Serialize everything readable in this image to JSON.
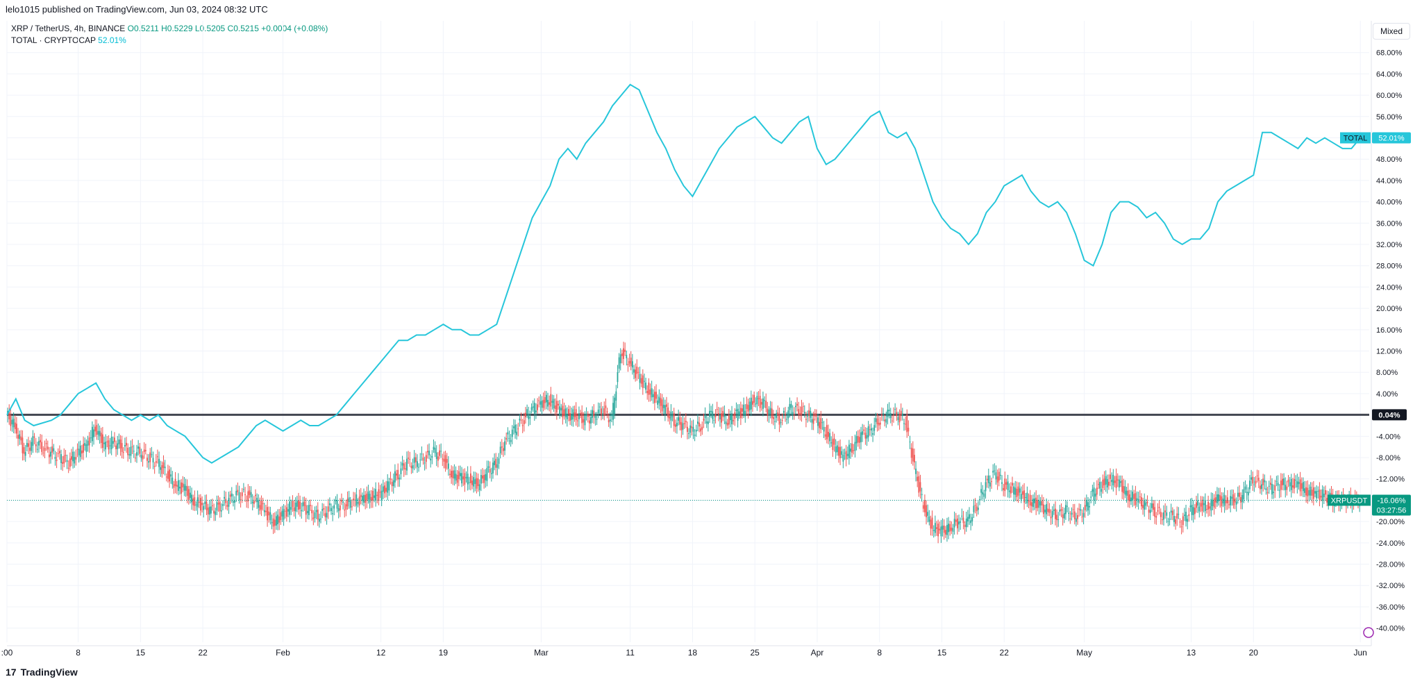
{
  "header": {
    "published": "lelo1015 published on TradingView.com, Jun 03, 2024 08:32 UTC"
  },
  "legend": {
    "symbol": "XRP / TetherUS, 4h, BINANCE",
    "ohlc": "O0.5211  H0.5229  L0.5205  C0.5215  +0.0004 (+0.08%)",
    "compare_symbol": "TOTAL · CRYPTOCAP",
    "compare_value": "52.01%"
  },
  "scale_button": "Mixed",
  "footer": {
    "brand": "TradingView",
    "logo": "17"
  },
  "colors": {
    "total_line": "#26c6da",
    "up": "#26a69a",
    "down": "#ef5350",
    "zero_line": "#434651",
    "xrp_tag": "#089981",
    "total_tag": "#26c6da"
  },
  "chart_data": {
    "type": "line",
    "y_axis": {
      "unit": "percent",
      "ylim": [
        -42,
        72
      ],
      "ticks": [
        68,
        64,
        60,
        56,
        52,
        48,
        44,
        40,
        36,
        32,
        28,
        24,
        20,
        16,
        12,
        8,
        4,
        -4,
        -8,
        -12,
        -16,
        -20,
        -24,
        -28,
        -32,
        -36,
        -40
      ],
      "tick_labels": [
        "68.00%",
        "64.00%",
        "60.00%",
        "56.00%",
        "52.00%",
        "48.00%",
        "44.00%",
        "40.00%",
        "36.00%",
        "32.00%",
        "28.00%",
        "24.00%",
        "20.00%",
        "16.00%",
        "12.00%",
        "8.00%",
        "4.00%",
        "-4.00%",
        "-8.00%",
        "-12.00%",
        "-16.00%",
        "-20.00%",
        "-24.00%",
        "-28.00%",
        "-32.00%",
        "-36.00%",
        "-40.00%"
      ]
    },
    "x_axis": {
      "tick_labels": [
        ":00",
        "8",
        "15",
        "22",
        "Feb",
        "12",
        "19",
        "Mar",
        "11",
        "18",
        "25",
        "Apr",
        "8",
        "15",
        "22",
        "May",
        "13",
        "20",
        "Jun"
      ],
      "tick_days": [
        0,
        8,
        15,
        22,
        31,
        42,
        49,
        60,
        70,
        77,
        84,
        91,
        98,
        105,
        112,
        121,
        133,
        140,
        152
      ],
      "day_range": [
        0,
        153
      ]
    },
    "reference_line": {
      "value": 0.04,
      "label": "0.04%"
    },
    "series": [
      {
        "name": "TOTAL",
        "last_label": "52.01%",
        "points": [
          [
            0,
            0
          ],
          [
            1,
            3
          ],
          [
            2,
            -1
          ],
          [
            3,
            -2
          ],
          [
            5,
            -1
          ],
          [
            6,
            0
          ],
          [
            7,
            2
          ],
          [
            8,
            4
          ],
          [
            9,
            5
          ],
          [
            10,
            6
          ],
          [
            11,
            3
          ],
          [
            12,
            1
          ],
          [
            13,
            0
          ],
          [
            14,
            -1
          ],
          [
            15,
            0
          ],
          [
            16,
            -1
          ],
          [
            17,
            0
          ],
          [
            18,
            -2
          ],
          [
            19,
            -3
          ],
          [
            20,
            -4
          ],
          [
            21,
            -6
          ],
          [
            22,
            -8
          ],
          [
            23,
            -9
          ],
          [
            24,
            -8
          ],
          [
            25,
            -7
          ],
          [
            26,
            -6
          ],
          [
            27,
            -4
          ],
          [
            28,
            -2
          ],
          [
            29,
            -1
          ],
          [
            30,
            -2
          ],
          [
            31,
            -3
          ],
          [
            32,
            -2
          ],
          [
            33,
            -1
          ],
          [
            34,
            -2
          ],
          [
            35,
            -2
          ],
          [
            36,
            -1
          ],
          [
            37,
            0
          ],
          [
            38,
            2
          ],
          [
            39,
            4
          ],
          [
            40,
            6
          ],
          [
            41,
            8
          ],
          [
            42,
            10
          ],
          [
            43,
            12
          ],
          [
            44,
            14
          ],
          [
            45,
            14
          ],
          [
            46,
            15
          ],
          [
            47,
            15
          ],
          [
            48,
            16
          ],
          [
            49,
            17
          ],
          [
            50,
            16
          ],
          [
            51,
            16
          ],
          [
            52,
            15
          ],
          [
            53,
            15
          ],
          [
            54,
            16
          ],
          [
            55,
            17
          ],
          [
            56,
            22
          ],
          [
            57,
            27
          ],
          [
            58,
            32
          ],
          [
            59,
            37
          ],
          [
            60,
            40
          ],
          [
            61,
            43
          ],
          [
            62,
            48
          ],
          [
            63,
            50
          ],
          [
            64,
            48
          ],
          [
            65,
            51
          ],
          [
            66,
            53
          ],
          [
            67,
            55
          ],
          [
            68,
            58
          ],
          [
            69,
            60
          ],
          [
            70,
            62
          ],
          [
            71,
            61
          ],
          [
            72,
            57
          ],
          [
            73,
            53
          ],
          [
            74,
            50
          ],
          [
            75,
            46
          ],
          [
            76,
            43
          ],
          [
            77,
            41
          ],
          [
            78,
            44
          ],
          [
            79,
            47
          ],
          [
            80,
            50
          ],
          [
            81,
            52
          ],
          [
            82,
            54
          ],
          [
            83,
            55
          ],
          [
            84,
            56
          ],
          [
            85,
            54
          ],
          [
            86,
            52
          ],
          [
            87,
            51
          ],
          [
            88,
            53
          ],
          [
            89,
            55
          ],
          [
            90,
            56
          ],
          [
            91,
            50
          ],
          [
            92,
            47
          ],
          [
            93,
            48
          ],
          [
            94,
            50
          ],
          [
            95,
            52
          ],
          [
            96,
            54
          ],
          [
            97,
            56
          ],
          [
            98,
            57
          ],
          [
            99,
            53
          ],
          [
            100,
            52
          ],
          [
            101,
            53
          ],
          [
            102,
            50
          ],
          [
            103,
            45
          ],
          [
            104,
            40
          ],
          [
            105,
            37
          ],
          [
            106,
            35
          ],
          [
            107,
            34
          ],
          [
            108,
            32
          ],
          [
            109,
            34
          ],
          [
            110,
            38
          ],
          [
            111,
            40
          ],
          [
            112,
            43
          ],
          [
            113,
            44
          ],
          [
            114,
            45
          ],
          [
            115,
            42
          ],
          [
            116,
            40
          ],
          [
            117,
            39
          ],
          [
            118,
            40
          ],
          [
            119,
            38
          ],
          [
            120,
            34
          ],
          [
            121,
            29
          ],
          [
            122,
            28
          ],
          [
            123,
            32
          ],
          [
            124,
            38
          ],
          [
            125,
            40
          ],
          [
            126,
            40
          ],
          [
            127,
            39
          ],
          [
            128,
            37
          ],
          [
            129,
            38
          ],
          [
            130,
            36
          ],
          [
            131,
            33
          ],
          [
            132,
            32
          ],
          [
            133,
            33
          ],
          [
            134,
            33
          ],
          [
            135,
            35
          ],
          [
            136,
            40
          ],
          [
            137,
            42
          ],
          [
            138,
            43
          ],
          [
            139,
            44
          ],
          [
            140,
            45
          ],
          [
            141,
            53
          ],
          [
            142,
            53
          ],
          [
            143,
            52
          ],
          [
            144,
            51
          ],
          [
            145,
            50
          ],
          [
            146,
            52
          ],
          [
            147,
            51
          ],
          [
            148,
            52
          ],
          [
            149,
            51
          ],
          [
            150,
            50
          ],
          [
            151,
            50
          ],
          [
            152,
            52
          ]
        ]
      },
      {
        "name": "XRPUSDT",
        "type": "candlestick",
        "last_label": "-16.06%",
        "countdown": "03:27:56",
        "points": [
          [
            0,
            0
          ],
          [
            1,
            -2
          ],
          [
            2,
            -7
          ],
          [
            3,
            -5
          ],
          [
            4,
            -6
          ],
          [
            5,
            -7
          ],
          [
            6,
            -8
          ],
          [
            7,
            -9
          ],
          [
            8,
            -7
          ],
          [
            9,
            -6
          ],
          [
            10,
            -2
          ],
          [
            11,
            -6
          ],
          [
            12,
            -5
          ],
          [
            13,
            -6
          ],
          [
            14,
            -7
          ],
          [
            15,
            -7
          ],
          [
            16,
            -8
          ],
          [
            17,
            -9
          ],
          [
            18,
            -11
          ],
          [
            19,
            -13
          ],
          [
            20,
            -14
          ],
          [
            21,
            -16
          ],
          [
            22,
            -17
          ],
          [
            23,
            -18
          ],
          [
            24,
            -17
          ],
          [
            25,
            -16
          ],
          [
            26,
            -15
          ],
          [
            27,
            -15
          ],
          [
            28,
            -16
          ],
          [
            29,
            -18
          ],
          [
            30,
            -20
          ],
          [
            31,
            -19
          ],
          [
            32,
            -17
          ],
          [
            33,
            -17
          ],
          [
            34,
            -18
          ],
          [
            35,
            -19
          ],
          [
            36,
            -18
          ],
          [
            37,
            -17
          ],
          [
            38,
            -17
          ],
          [
            39,
            -16
          ],
          [
            40,
            -16
          ],
          [
            41,
            -15
          ],
          [
            42,
            -15
          ],
          [
            43,
            -13
          ],
          [
            44,
            -11
          ],
          [
            45,
            -9
          ],
          [
            46,
            -9
          ],
          [
            47,
            -8
          ],
          [
            48,
            -7
          ],
          [
            49,
            -8
          ],
          [
            50,
            -11
          ],
          [
            51,
            -12
          ],
          [
            52,
            -12
          ],
          [
            53,
            -13
          ],
          [
            54,
            -11
          ],
          [
            55,
            -9
          ],
          [
            56,
            -5
          ],
          [
            57,
            -3
          ],
          [
            58,
            -1
          ],
          [
            59,
            1
          ],
          [
            60,
            2
          ],
          [
            61,
            3
          ],
          [
            62,
            1
          ],
          [
            63,
            0
          ],
          [
            64,
            0
          ],
          [
            65,
            -1
          ],
          [
            66,
            0
          ],
          [
            67,
            1
          ],
          [
            68,
            -1
          ],
          [
            69,
            12
          ],
          [
            70,
            10
          ],
          [
            71,
            7
          ],
          [
            72,
            5
          ],
          [
            73,
            3
          ],
          [
            74,
            1
          ],
          [
            75,
            -1
          ],
          [
            76,
            -2
          ],
          [
            77,
            -3
          ],
          [
            78,
            -2
          ],
          [
            79,
            0
          ],
          [
            80,
            0
          ],
          [
            81,
            -1
          ],
          [
            82,
            0
          ],
          [
            83,
            1
          ],
          [
            84,
            3
          ],
          [
            85,
            2
          ],
          [
            86,
            0
          ],
          [
            87,
            -1
          ],
          [
            88,
            1
          ],
          [
            89,
            1
          ],
          [
            90,
            0
          ],
          [
            91,
            -1
          ],
          [
            92,
            -3
          ],
          [
            93,
            -6
          ],
          [
            94,
            -8
          ],
          [
            95,
            -6
          ],
          [
            96,
            -4
          ],
          [
            97,
            -3
          ],
          [
            98,
            -1
          ],
          [
            99,
            0
          ],
          [
            100,
            0
          ],
          [
            101,
            -1
          ],
          [
            102,
            -10
          ],
          [
            103,
            -17
          ],
          [
            104,
            -21
          ],
          [
            105,
            -22
          ],
          [
            106,
            -21
          ],
          [
            107,
            -20
          ],
          [
            108,
            -20
          ],
          [
            109,
            -17
          ],
          [
            110,
            -13
          ],
          [
            111,
            -11
          ],
          [
            112,
            -13
          ],
          [
            113,
            -14
          ],
          [
            114,
            -15
          ],
          [
            115,
            -16
          ],
          [
            116,
            -17
          ],
          [
            117,
            -18
          ],
          [
            118,
            -19
          ],
          [
            119,
            -18
          ],
          [
            120,
            -19
          ],
          [
            121,
            -18
          ],
          [
            122,
            -15
          ],
          [
            123,
            -13
          ],
          [
            124,
            -12
          ],
          [
            125,
            -13
          ],
          [
            126,
            -15
          ],
          [
            127,
            -16
          ],
          [
            128,
            -17
          ],
          [
            129,
            -18
          ],
          [
            130,
            -19
          ],
          [
            131,
            -19
          ],
          [
            132,
            -20
          ],
          [
            133,
            -18
          ],
          [
            134,
            -17
          ],
          [
            135,
            -17
          ],
          [
            136,
            -16
          ],
          [
            137,
            -16
          ],
          [
            138,
            -16
          ],
          [
            139,
            -15
          ],
          [
            140,
            -12
          ],
          [
            141,
            -13
          ],
          [
            142,
            -14
          ],
          [
            143,
            -13
          ],
          [
            144,
            -13
          ],
          [
            145,
            -13
          ],
          [
            146,
            -14
          ],
          [
            147,
            -15
          ],
          [
            148,
            -15
          ],
          [
            149,
            -16
          ],
          [
            150,
            -16
          ],
          [
            151,
            -16
          ],
          [
            152,
            -16
          ]
        ]
      }
    ],
    "grid": true,
    "legend": "top-left"
  }
}
